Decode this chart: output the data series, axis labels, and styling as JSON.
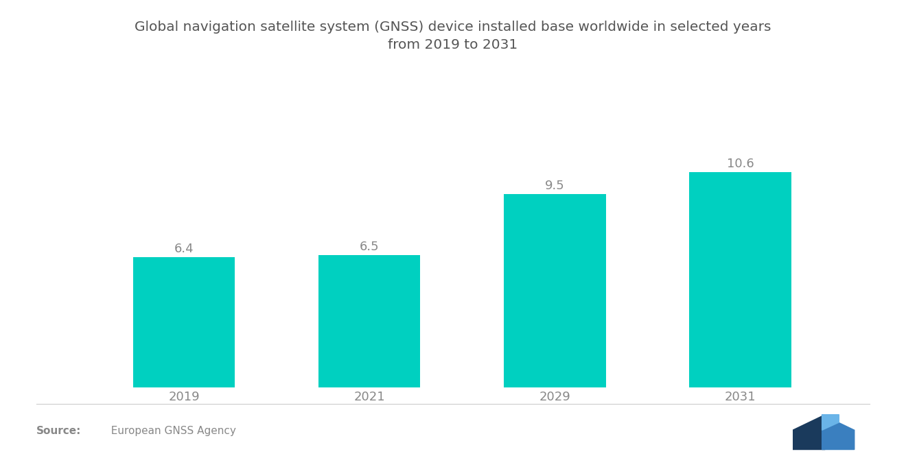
{
  "title": "Global navigation satellite system (GNSS) device installed base worldwide in selected years\nfrom 2019 to 2031",
  "categories": [
    "2019",
    "2021",
    "2029",
    "2031"
  ],
  "values": [
    6.4,
    6.5,
    9.5,
    10.6
  ],
  "bar_color": "#00D0C0",
  "background_color": "#ffffff",
  "title_fontsize": 14.5,
  "label_fontsize": 13,
  "tick_fontsize": 13,
  "source_bold": "Source:",
  "source_rest": "  European GNSS Agency",
  "text_color": "#888888",
  "title_color": "#555555",
  "bar_width": 0.55,
  "ylim_max": 13.0
}
